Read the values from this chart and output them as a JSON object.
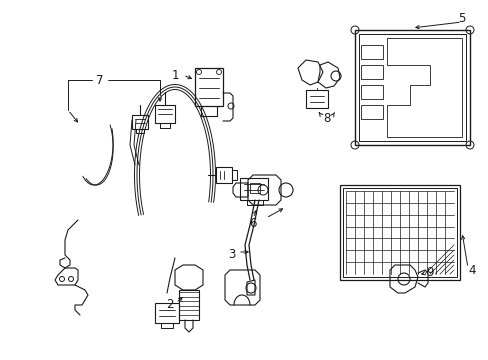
{
  "background_color": "#ffffff",
  "line_color": "#1a1a1a",
  "figsize": [
    4.89,
    3.6
  ],
  "dpi": 100,
  "components": {
    "harness_color": "#1a1a1a",
    "label_fontsize": 8.5
  }
}
